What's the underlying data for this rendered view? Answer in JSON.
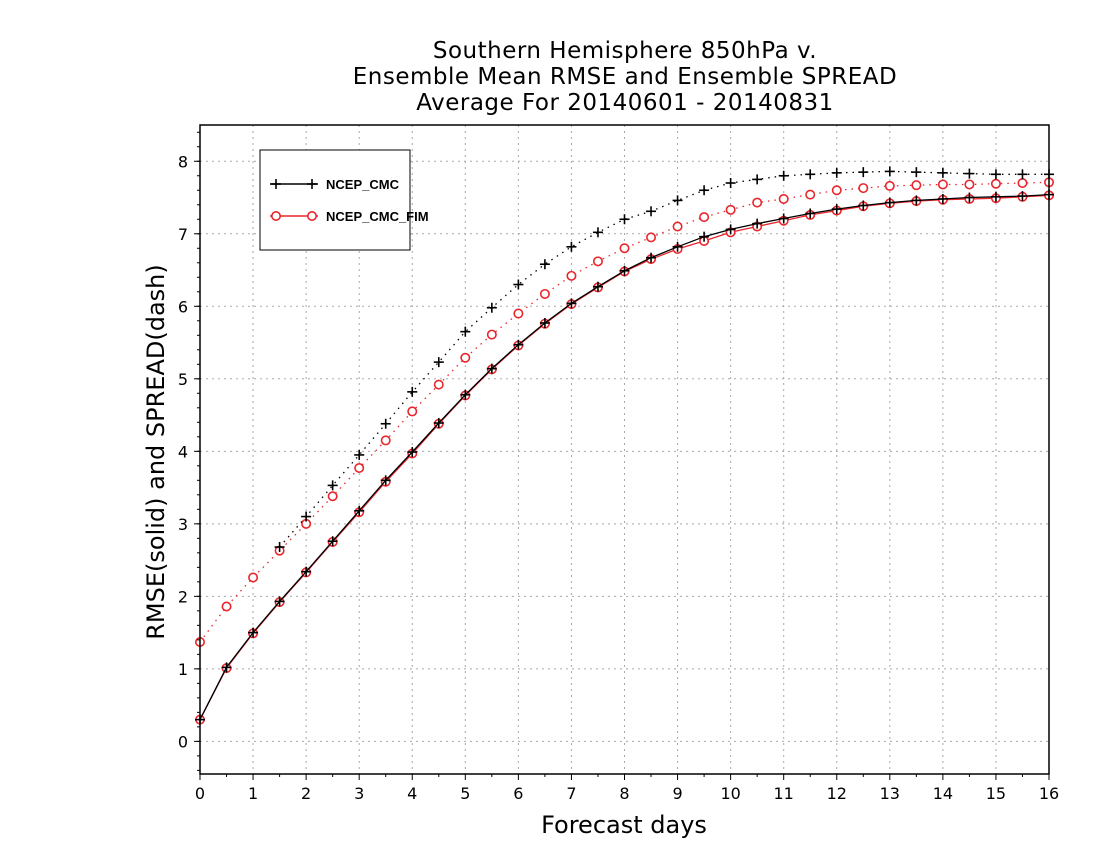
{
  "title_lines": [
    "Southern Hemisphere 850hPa v.",
    "Ensemble Mean RMSE and Ensemble SPREAD",
    "Average For 20140601 - 20140831"
  ],
  "chart_data": {
    "type": "line",
    "xlabel": "Forecast days",
    "ylabel": "RMSE(solid) and SPREAD(dash)",
    "xlim": [
      0,
      16
    ],
    "ylim": [
      -0.45,
      8.5
    ],
    "xticks": [
      0,
      1,
      2,
      3,
      4,
      5,
      6,
      7,
      8,
      9,
      10,
      11,
      12,
      13,
      14,
      15,
      16
    ],
    "yticks": [
      0,
      1,
      2,
      3,
      4,
      5,
      6,
      7,
      8
    ],
    "grid": true,
    "legend_position": "top-left",
    "x": [
      0,
      0.5,
      1,
      1.5,
      2,
      2.5,
      3,
      3.5,
      4,
      4.5,
      5,
      5.5,
      6,
      6.5,
      7,
      7.5,
      8,
      8.5,
      9,
      9.5,
      10,
      10.5,
      11,
      11.5,
      12,
      12.5,
      13,
      13.5,
      14,
      14.5,
      15,
      15.5,
      16
    ],
    "series": [
      {
        "name": "NCEP_CMC",
        "kind": "rmse",
        "color": "#000000",
        "marker": "plus",
        "line": "solid",
        "values": [
          0.3,
          1.02,
          1.5,
          1.93,
          2.34,
          2.76,
          3.18,
          3.6,
          3.99,
          4.39,
          4.78,
          5.14,
          5.47,
          5.77,
          6.04,
          6.27,
          6.49,
          6.67,
          6.82,
          6.96,
          7.06,
          7.14,
          7.21,
          7.28,
          7.34,
          7.39,
          7.43,
          7.46,
          7.48,
          7.5,
          7.51,
          7.52,
          7.54
        ]
      },
      {
        "name": "NCEP_CMC_FIM",
        "kind": "rmse",
        "color": "#e8262c",
        "marker": "circle",
        "line": "solid",
        "values": [
          0.3,
          1.01,
          1.49,
          1.92,
          2.33,
          2.75,
          3.16,
          3.58,
          3.97,
          4.38,
          4.77,
          5.13,
          5.46,
          5.76,
          6.03,
          6.26,
          6.48,
          6.65,
          6.79,
          6.9,
          7.02,
          7.1,
          7.18,
          7.26,
          7.32,
          7.38,
          7.42,
          7.45,
          7.47,
          7.48,
          7.49,
          7.51,
          7.53
        ]
      },
      {
        "name": "NCEP_CMC",
        "kind": "spread",
        "color": "#000000",
        "marker": "plus",
        "line": "dotted",
        "values": [
          null,
          null,
          null,
          2.68,
          3.1,
          3.53,
          3.95,
          4.38,
          4.82,
          5.23,
          5.65,
          5.98,
          6.3,
          6.58,
          6.82,
          7.02,
          7.2,
          7.31,
          7.46,
          7.6,
          7.7,
          7.75,
          7.8,
          7.82,
          7.84,
          7.85,
          7.86,
          7.85,
          7.84,
          7.83,
          7.82,
          7.82,
          7.82
        ]
      },
      {
        "name": "NCEP_CMC_FIM",
        "kind": "spread",
        "color": "#e8262c",
        "marker": "circle",
        "line": "dotted",
        "values": [
          1.37,
          1.86,
          2.26,
          2.63,
          3.0,
          3.38,
          3.77,
          4.15,
          4.55,
          4.92,
          5.29,
          5.61,
          5.9,
          6.17,
          6.42,
          6.62,
          6.8,
          6.95,
          7.1,
          7.23,
          7.33,
          7.43,
          7.48,
          7.54,
          7.6,
          7.63,
          7.66,
          7.67,
          7.68,
          7.68,
          7.69,
          7.7,
          7.71
        ]
      }
    ],
    "legend": [
      {
        "label": "NCEP_CMC",
        "color": "#000000",
        "marker": "plus"
      },
      {
        "label": "NCEP_CMC_FIM",
        "color": "#e8262c",
        "marker": "circle"
      }
    ]
  }
}
